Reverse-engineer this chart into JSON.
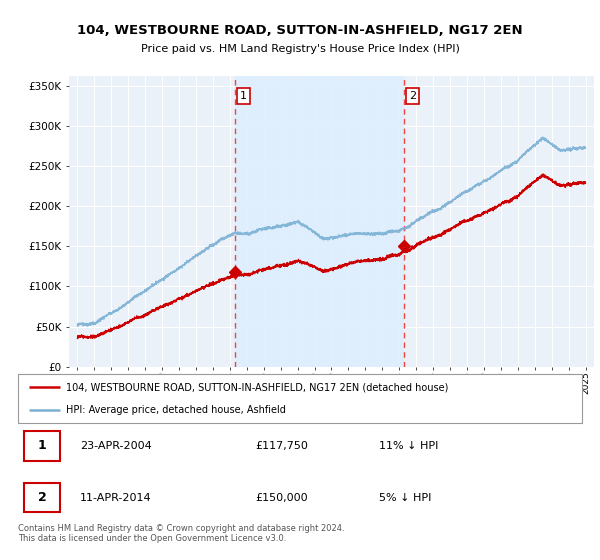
{
  "title": "104, WESTBOURNE ROAD, SUTTON-IN-ASHFIELD, NG17 2EN",
  "subtitle": "Price paid vs. HM Land Registry's House Price Index (HPI)",
  "legend_line1": "104, WESTBOURNE ROAD, SUTTON-IN-ASHFIELD, NG17 2EN (detached house)",
  "legend_line2": "HPI: Average price, detached house, Ashfield",
  "footnote": "Contains HM Land Registry data © Crown copyright and database right 2024.\nThis data is licensed under the Open Government Licence v3.0.",
  "sale1_label": "1",
  "sale1_date": "23-APR-2004",
  "sale1_price": "£117,750",
  "sale1_hpi": "11% ↓ HPI",
  "sale2_label": "2",
  "sale2_date": "11-APR-2014",
  "sale2_price": "£150,000",
  "sale2_hpi": "5% ↓ HPI",
  "sale1_x": 2004.3,
  "sale1_y": 117750,
  "sale2_x": 2014.27,
  "sale2_y": 150000,
  "house_color": "#cc0000",
  "hpi_color": "#7ab0d4",
  "shade_color": "#ddeeff",
  "plot_bg_color": "#eaf1f8",
  "grid_color": "#ffffff",
  "ylim_min": 0,
  "ylim_max": 362500,
  "xlim_min": 1994.5,
  "xlim_max": 2025.5,
  "yticks": [
    0,
    50000,
    100000,
    150000,
    200000,
    250000,
    300000,
    350000
  ],
  "ytick_labels": [
    "£0",
    "£50K",
    "£100K",
    "£150K",
    "£200K",
    "£250K",
    "£300K",
    "£350K"
  ]
}
